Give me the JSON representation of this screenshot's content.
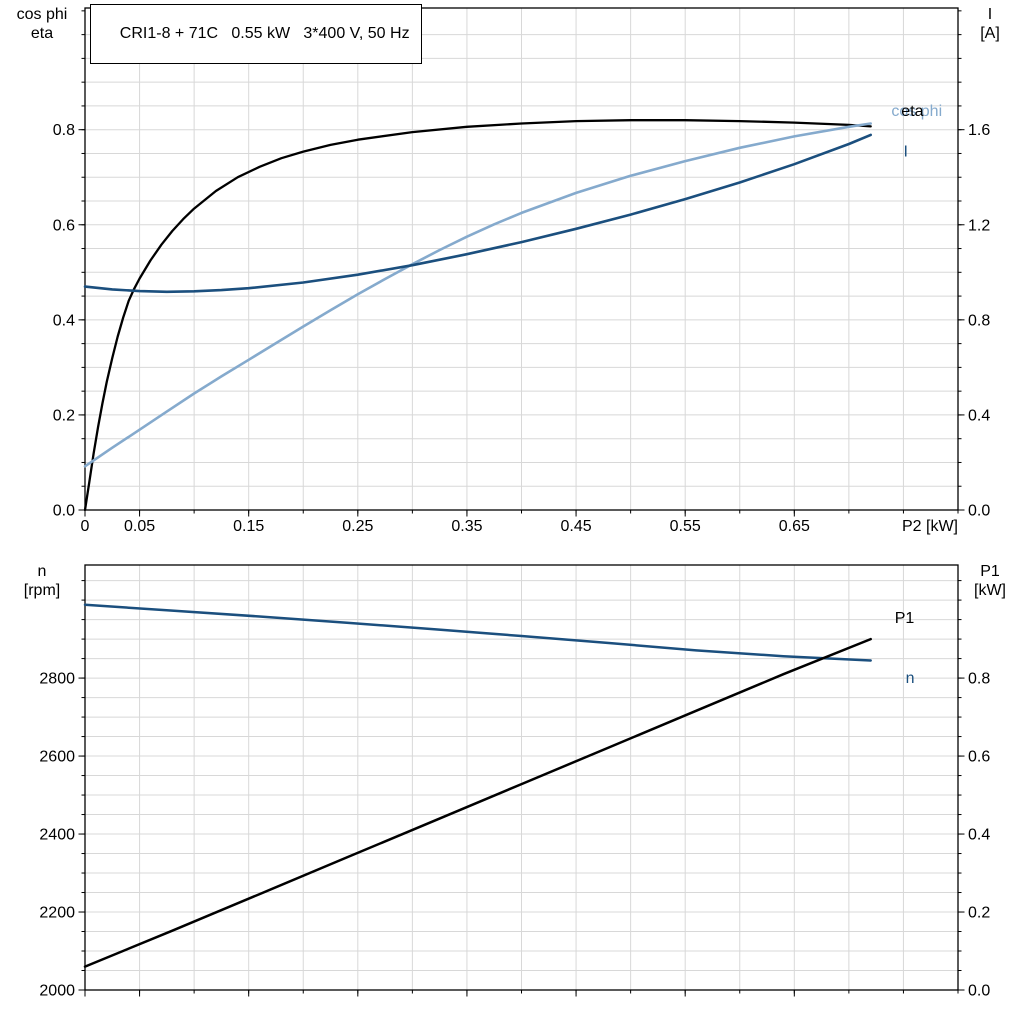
{
  "colors": {
    "black": "#000000",
    "dark_blue": "#1b4f7e",
    "light_blue": "#85aacd",
    "grid": "#d8d8d8",
    "frame": "#000000"
  },
  "title_box": {
    "text": "CRI1-8 + 71C   0.55 kW   3*400 V, 50 Hz"
  },
  "chart_data": [
    {
      "type": "line",
      "title": "CRI1-8 + 71C   0.55 kW   3*400 V, 50 Hz",
      "x_axis": {
        "label": "P2 [kW]",
        "range": [
          0,
          0.8
        ],
        "minor_step": 0.05,
        "ticks": [
          0,
          0.05,
          0.15,
          0.25,
          0.35,
          0.45,
          0.55,
          0.65
        ],
        "tick_labels": [
          "0",
          "0.05",
          "0.15",
          "0.25",
          "0.35",
          "0.45",
          "0.55",
          "0.65"
        ],
        "show_labels": true
      },
      "left_axis": {
        "label_lines": [
          "cos phi",
          "eta"
        ],
        "range": [
          0,
          1.056
        ],
        "minor_step": 0.05,
        "ticks": [
          0,
          0.2,
          0.4,
          0.6,
          0.8
        ],
        "tick_labels": [
          "0.0",
          "0.2",
          "0.4",
          "0.6",
          "0.8"
        ]
      },
      "right_axis": {
        "label_lines": [
          "I",
          "[A]"
        ],
        "range": [
          0,
          2.112
        ],
        "minor_step": 0.1,
        "ticks": [
          0,
          0.4,
          0.8,
          1.2,
          1.6
        ],
        "tick_labels": [
          "0.0",
          "0.4",
          "0.8",
          "1.2",
          "1.6"
        ]
      },
      "series": [
        {
          "name": "eta",
          "color": "black",
          "axis": "left",
          "width": 2.3,
          "x": [
            0,
            0.004,
            0.008,
            0.012,
            0.016,
            0.02,
            0.025,
            0.03,
            0.035,
            0.04,
            0.045,
            0.05,
            0.06,
            0.07,
            0.08,
            0.09,
            0.1,
            0.12,
            0.14,
            0.16,
            0.18,
            0.2,
            0.225,
            0.25,
            0.3,
            0.35,
            0.4,
            0.45,
            0.5,
            0.55,
            0.6,
            0.65,
            0.7,
            0.72
          ],
          "y": [
            0,
            0.06,
            0.12,
            0.175,
            0.225,
            0.27,
            0.32,
            0.365,
            0.405,
            0.44,
            0.465,
            0.487,
            0.525,
            0.558,
            0.587,
            0.612,
            0.634,
            0.671,
            0.7,
            0.722,
            0.74,
            0.754,
            0.768,
            0.779,
            0.795,
            0.806,
            0.813,
            0.818,
            0.82,
            0.82,
            0.818,
            0.815,
            0.81,
            0.807
          ]
        },
        {
          "name": "cos phi",
          "color": "light_blue",
          "axis": "left",
          "width": 2.6,
          "x": [
            0,
            0.025,
            0.05,
            0.075,
            0.1,
            0.125,
            0.15,
            0.175,
            0.2,
            0.225,
            0.25,
            0.275,
            0.3,
            0.325,
            0.35,
            0.375,
            0.4,
            0.45,
            0.5,
            0.55,
            0.6,
            0.65,
            0.7,
            0.72
          ],
          "y": [
            0.092,
            0.131,
            0.169,
            0.207,
            0.245,
            0.281,
            0.316,
            0.351,
            0.386,
            0.42,
            0.454,
            0.486,
            0.517,
            0.547,
            0.575,
            0.601,
            0.625,
            0.667,
            0.703,
            0.734,
            0.762,
            0.786,
            0.806,
            0.813
          ]
        },
        {
          "name": "I",
          "color": "dark_blue",
          "axis": "right",
          "width": 2.6,
          "x": [
            0,
            0.025,
            0.05,
            0.075,
            0.1,
            0.125,
            0.15,
            0.2,
            0.25,
            0.3,
            0.35,
            0.4,
            0.45,
            0.5,
            0.55,
            0.6,
            0.65,
            0.7,
            0.72
          ],
          "y": [
            0.94,
            0.928,
            0.921,
            0.918,
            0.92,
            0.925,
            0.933,
            0.957,
            0.99,
            1.03,
            1.076,
            1.127,
            1.183,
            1.243,
            1.308,
            1.378,
            1.455,
            1.54,
            1.578
          ]
        }
      ],
      "annotations": [
        {
          "text": "cos phi",
          "color": "light_blue",
          "axis": "left",
          "x": 0.739,
          "y": 0.838
        },
        {
          "text": "eta",
          "color": "black",
          "axis": "left",
          "x": 0.748,
          "y": 0.838
        },
        {
          "text": "I",
          "color": "dark_blue",
          "axis": "left",
          "x": 0.75,
          "y": 0.752
        }
      ]
    },
    {
      "type": "line",
      "title": "",
      "x_axis": {
        "label": "",
        "range": [
          0,
          0.8
        ],
        "minor_step": 0.05,
        "ticks": [
          0,
          0.05,
          0.15,
          0.25,
          0.35,
          0.45,
          0.55,
          0.65
        ],
        "tick_labels": [
          "",
          "",
          "",
          "",
          "",
          "",
          "",
          ""
        ],
        "show_labels": false
      },
      "left_axis": {
        "label_lines": [
          "n",
          "[rpm]"
        ],
        "range": [
          2000,
          3090
        ],
        "minor_step": 50,
        "ticks": [
          2000,
          2200,
          2400,
          2600,
          2800
        ],
        "tick_labels": [
          "2000",
          "2200",
          "2400",
          "2600",
          "2800"
        ]
      },
      "right_axis": {
        "label_lines": [
          "P1",
          "[kW]"
        ],
        "range": [
          0,
          1.09
        ],
        "minor_step": 0.05,
        "ticks": [
          0,
          0.2,
          0.4,
          0.6,
          0.8
        ],
        "tick_labels": [
          "0.0",
          "0.2",
          "0.4",
          "0.6",
          "0.8"
        ]
      },
      "series": [
        {
          "name": "n",
          "color": "dark_blue",
          "axis": "left",
          "width": 2.5,
          "x": [
            0,
            0.08,
            0.16,
            0.24,
            0.32,
            0.4,
            0.48,
            0.56,
            0.64,
            0.72
          ],
          "y": [
            2988,
            2973,
            2958,
            2942,
            2925,
            2908,
            2890,
            2871,
            2856,
            2845
          ]
        },
        {
          "name": "P1",
          "color": "black",
          "axis": "right",
          "width": 2.5,
          "x": [
            0,
            0.08,
            0.16,
            0.24,
            0.32,
            0.4,
            0.48,
            0.56,
            0.64,
            0.72
          ],
          "y": [
            0.06,
            0.152,
            0.246,
            0.34,
            0.434,
            0.528,
            0.622,
            0.716,
            0.81,
            0.9
          ]
        }
      ],
      "annotations": [
        {
          "text": "P1",
          "color": "black",
          "axis": "right",
          "x": 0.742,
          "y": 0.952
        },
        {
          "text": "n",
          "color": "dark_blue",
          "axis": "left",
          "x": 0.752,
          "y": 2798
        }
      ]
    }
  ]
}
